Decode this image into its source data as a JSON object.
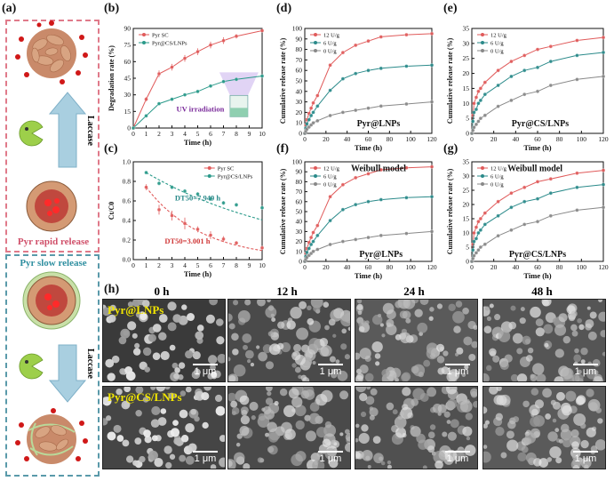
{
  "panel_letters": {
    "a": "(a)",
    "b": "(b)",
    "c": "(c)",
    "d": "(d)",
    "e": "(e)",
    "f": "(f)",
    "g": "(g)",
    "h": "(h)"
  },
  "panel_a": {
    "rapid_release": "Pyr rapid release",
    "slow_release": "Pyr slow release",
    "enzyme_top": "Laccase",
    "enzyme_bottom": "Laccase",
    "colors": {
      "rapid_box": "#e07a8a",
      "slow_box": "#5a9aaa",
      "arrow": "#9cc5d8",
      "pacman": "#9dcf4a",
      "shell": "#d7a07a",
      "core": "#c9544a",
      "coat": "#b9d99a"
    }
  },
  "panel_h": {
    "columns": [
      "0 h",
      "12 h",
      "24 h",
      "48 h"
    ],
    "row_labels": [
      "Pyr@LNPs",
      "Pyr@CS/LNPs"
    ],
    "scale_bar": "1 μm"
  },
  "chart_data": [
    {
      "id": "b",
      "type": "line",
      "xlabel": "Time (h)",
      "ylabel": "Degradation rate (%)",
      "xlim": [
        0,
        10
      ],
      "ylim": [
        0,
        90
      ],
      "xticks": [
        0,
        1,
        2,
        3,
        4,
        5,
        6,
        7,
        8,
        9,
        10
      ],
      "yticks": [
        0,
        15,
        30,
        45,
        60,
        75,
        90
      ],
      "legend_position": "top-left",
      "annotation": "UV irradiation",
      "series": [
        {
          "name": "Pyr SC",
          "color": "#e05a5a",
          "marker": "circle",
          "x": [
            0,
            1,
            2,
            3,
            4,
            5,
            6,
            7,
            8,
            10
          ],
          "y": [
            0,
            26,
            49,
            55,
            63,
            69,
            75,
            79,
            83,
            88
          ],
          "err": [
            0,
            2,
            3,
            3,
            3,
            3,
            3,
            3,
            2,
            1
          ]
        },
        {
          "name": "Pyr@CS/LNPs",
          "color": "#2a9a8a",
          "marker": "circle",
          "x": [
            0,
            1,
            2,
            3,
            4,
            5,
            6,
            7,
            8,
            10
          ],
          "y": [
            0,
            11,
            22,
            26,
            30,
            33,
            38,
            42,
            44,
            47
          ],
          "err": [
            0,
            1,
            1,
            1,
            1,
            1,
            1,
            1,
            1,
            1
          ]
        }
      ]
    },
    {
      "id": "c",
      "type": "scatter",
      "xlabel": "Time (h)",
      "ylabel": "Ct/C0",
      "xlim": [
        0,
        10
      ],
      "ylim": [
        0.0,
        1.0
      ],
      "xticks": [
        0,
        1,
        2,
        3,
        4,
        5,
        6,
        7,
        8,
        9,
        10
      ],
      "yticks": [
        0.0,
        0.2,
        0.4,
        0.6,
        0.8,
        1.0
      ],
      "legend_position": "top-right",
      "annotations": [
        "DT50=7.949 h",
        "DT50=3.001 h"
      ],
      "series": [
        {
          "name": "Pyr SC",
          "color": "#e05a5a",
          "marker": "circle",
          "x": [
            1,
            2,
            3,
            4,
            5,
            6,
            7,
            8,
            10
          ],
          "y": [
            0.74,
            0.51,
            0.45,
            0.37,
            0.31,
            0.25,
            0.21,
            0.17,
            0.12
          ],
          "err": [
            0.03,
            0.05,
            0.05,
            0.06,
            0.03,
            0.04,
            0.03,
            0.02,
            0.02
          ],
          "fit_k": 0.231
        },
        {
          "name": "Pyr@CS/LNPs",
          "color": "#2a9a8a",
          "marker": "circle",
          "x": [
            1,
            2,
            3,
            4,
            5,
            6,
            7,
            8,
            10
          ],
          "y": [
            0.89,
            0.78,
            0.74,
            0.7,
            0.67,
            0.62,
            0.58,
            0.56,
            0.53
          ],
          "err": [
            0.01,
            0.02,
            0.02,
            0.02,
            0.02,
            0.02,
            0.02,
            0.02,
            0.02
          ],
          "fit_k": 0.0872
        }
      ]
    },
    {
      "id": "d",
      "type": "line",
      "xlabel": "Time (h)",
      "ylabel": "Cumulative release rate (%)",
      "xlim": [
        0,
        120
      ],
      "ylim": [
        0,
        100
      ],
      "xticks": [
        0,
        20,
        40,
        60,
        80,
        100,
        120
      ],
      "yticks": [
        0,
        10,
        20,
        30,
        40,
        50,
        60,
        70,
        80,
        90,
        100
      ],
      "legend_position": "top-left",
      "annotation": "Pyr@LNPs",
      "series": [
        {
          "name": "12 U/g",
          "color": "#e05a5a",
          "x": [
            0,
            1,
            2,
            4,
            6,
            8,
            12,
            24,
            36,
            48,
            60,
            72,
            96,
            120
          ],
          "y": [
            0,
            8,
            13,
            19,
            24,
            29,
            36,
            65,
            77,
            84,
            88,
            92,
            94,
            95
          ]
        },
        {
          "name": "6 U/g",
          "color": "#2a8a8a",
          "x": [
            0,
            1,
            2,
            4,
            6,
            8,
            12,
            24,
            36,
            48,
            60,
            72,
            96,
            120
          ],
          "y": [
            0,
            5,
            9,
            13,
            17,
            20,
            26,
            41,
            52,
            57,
            60,
            62,
            64,
            65
          ]
        },
        {
          "name": "0 U/g",
          "color": "#888888",
          "x": [
            0,
            1,
            2,
            4,
            6,
            8,
            12,
            24,
            36,
            48,
            60,
            72,
            96,
            120
          ],
          "y": [
            0,
            2,
            4,
            6,
            8,
            10,
            12,
            17,
            20,
            22,
            24,
            26,
            28,
            30
          ]
        }
      ]
    },
    {
      "id": "e",
      "type": "line",
      "xlabel": "Time (h)",
      "ylabel": "Cumulative release rate (%)",
      "xlim": [
        0,
        120
      ],
      "ylim": [
        0,
        35
      ],
      "xticks": [
        0,
        20,
        40,
        60,
        80,
        100,
        120
      ],
      "yticks": [
        0,
        5,
        10,
        15,
        20,
        25,
        30,
        35
      ],
      "legend_position": "top-left",
      "annotation": "Pyr@CS/LNPs",
      "series": [
        {
          "name": "12 U/g",
          "color": "#e05a5a",
          "x": [
            0,
            1,
            2,
            4,
            6,
            8,
            12,
            24,
            36,
            48,
            60,
            72,
            96,
            120
          ],
          "y": [
            0,
            6,
            10,
            12,
            14,
            15,
            17,
            21,
            24,
            26,
            28,
            29,
            31,
            32
          ]
        },
        {
          "name": "6 U/g",
          "color": "#2a8a8a",
          "x": [
            0,
            1,
            2,
            4,
            6,
            8,
            12,
            24,
            36,
            48,
            60,
            72,
            96,
            120
          ],
          "y": [
            0,
            4,
            7,
            8,
            10,
            11,
            13,
            16,
            19,
            21,
            22,
            24,
            26,
            27
          ]
        },
        {
          "name": "0 U/g",
          "color": "#888888",
          "x": [
            0,
            1,
            2,
            4,
            6,
            8,
            12,
            24,
            36,
            48,
            60,
            72,
            96,
            120
          ],
          "y": [
            0,
            1,
            2,
            3,
            4,
            5,
            6,
            9,
            11,
            13,
            14,
            16,
            18,
            19
          ]
        }
      ]
    },
    {
      "id": "f",
      "type": "line",
      "xlabel": "Time (h)",
      "ylabel": "Cumulative release rate (%)",
      "xlim": [
        0,
        120
      ],
      "ylim": [
        0,
        100
      ],
      "xticks": [
        0,
        20,
        40,
        60,
        80,
        100,
        120
      ],
      "yticks": [
        0,
        10,
        20,
        30,
        40,
        50,
        60,
        70,
        80,
        90,
        100
      ],
      "legend_position": "top-left",
      "annotations": [
        "Weibull model",
        "Pyr@LNPs"
      ],
      "series": [
        {
          "name": "12 U/g",
          "color": "#e05a5a",
          "x": [
            0,
            1,
            2,
            4,
            6,
            8,
            12,
            24,
            36,
            48,
            60,
            72,
            96,
            120
          ],
          "y": [
            0,
            8,
            13,
            19,
            24,
            29,
            36,
            65,
            77,
            84,
            88,
            92,
            94,
            95
          ]
        },
        {
          "name": "6 U/g",
          "color": "#2a8a8a",
          "x": [
            0,
            1,
            2,
            4,
            6,
            8,
            12,
            24,
            36,
            48,
            60,
            72,
            96,
            120
          ],
          "y": [
            0,
            5,
            9,
            13,
            17,
            20,
            26,
            41,
            52,
            57,
            60,
            62,
            64,
            65
          ]
        },
        {
          "name": "0 U/g",
          "color": "#888888",
          "x": [
            0,
            1,
            2,
            4,
            6,
            8,
            12,
            24,
            36,
            48,
            60,
            72,
            96,
            120
          ],
          "y": [
            0,
            2,
            4,
            6,
            8,
            10,
            12,
            17,
            20,
            22,
            24,
            26,
            28,
            30
          ]
        }
      ]
    },
    {
      "id": "g",
      "type": "line",
      "xlabel": "Time (h)",
      "ylabel": "Cumulative release rate (%)",
      "xlim": [
        0,
        120
      ],
      "ylim": [
        0,
        35
      ],
      "xticks": [
        0,
        20,
        40,
        60,
        80,
        100,
        120
      ],
      "yticks": [
        0,
        5,
        10,
        15,
        20,
        25,
        30,
        35
      ],
      "legend_position": "top-left",
      "annotations": [
        "Weibull model",
        "Pyr@CS/LNPs"
      ],
      "series": [
        {
          "name": "12 U/g",
          "color": "#e05a5a",
          "x": [
            0,
            1,
            2,
            4,
            6,
            8,
            12,
            24,
            36,
            48,
            60,
            72,
            96,
            120
          ],
          "y": [
            0,
            6,
            10,
            12,
            14,
            15,
            17,
            21,
            24,
            26,
            28,
            29,
            31,
            32
          ]
        },
        {
          "name": "6 U/g",
          "color": "#2a8a8a",
          "x": [
            0,
            1,
            2,
            4,
            6,
            8,
            12,
            24,
            36,
            48,
            60,
            72,
            96,
            120
          ],
          "y": [
            0,
            4,
            7,
            8,
            10,
            11,
            13,
            16,
            19,
            21,
            22,
            24,
            26,
            27
          ]
        },
        {
          "name": "0 U/g",
          "color": "#888888",
          "x": [
            0,
            1,
            2,
            4,
            6,
            8,
            12,
            24,
            36,
            48,
            60,
            72,
            96,
            120
          ],
          "y": [
            0,
            1,
            2,
            3,
            4,
            5,
            6,
            9,
            11,
            13,
            14,
            16,
            18,
            19
          ]
        }
      ]
    }
  ]
}
